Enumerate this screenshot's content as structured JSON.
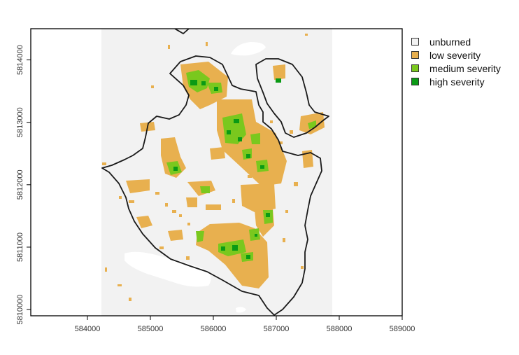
{
  "map": {
    "legend": [
      {
        "label": "unburned",
        "color": "#f2f2f2"
      },
      {
        "label": "low severity",
        "color": "#e8b04f"
      },
      {
        "label": "medium severity",
        "color": "#7ac81e"
      },
      {
        "label": "high severity",
        "color": "#0a9a15"
      }
    ],
    "x_ticks": [
      "584000",
      "585000",
      "586000",
      "587000",
      "588000",
      "589000"
    ],
    "y_ticks": [
      "5810000",
      "5811000",
      "5812000",
      "5813000",
      "5814000"
    ],
    "x_range": [
      583100,
      589000
    ],
    "y_range": [
      5809900,
      5814500
    ],
    "raster_extent": {
      "xmin": 584150,
      "xmax": 587900
    },
    "colors": {
      "frame": "#000000",
      "outline": "#1a1a1a",
      "background": "#ffffff"
    }
  }
}
